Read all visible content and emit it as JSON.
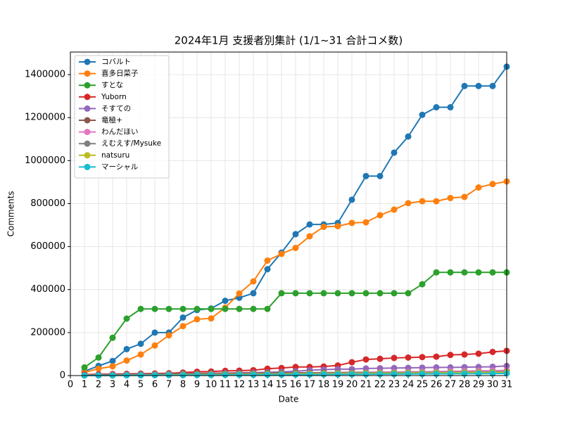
{
  "chart_data": {
    "type": "line",
    "title": "2024年1月 支援者別集計 (1/1~31 合計コメ数)",
    "x_label": "Date",
    "y_label": "Comments",
    "x": [
      1,
      2,
      3,
      4,
      5,
      6,
      7,
      8,
      9,
      10,
      11,
      12,
      13,
      14,
      15,
      16,
      17,
      18,
      19,
      20,
      21,
      22,
      23,
      24,
      25,
      26,
      27,
      28,
      29,
      30,
      31
    ],
    "xlim": [
      0,
      31
    ],
    "xticks": [
      0,
      1,
      2,
      3,
      4,
      5,
      6,
      7,
      8,
      9,
      10,
      11,
      12,
      13,
      14,
      15,
      16,
      17,
      18,
      19,
      20,
      21,
      22,
      23,
      24,
      25,
      26,
      27,
      28,
      29,
      30,
      31
    ],
    "ylim": [
      0,
      1505000
    ],
    "yticks": [
      0,
      200000,
      400000,
      600000,
      800000,
      1000000,
      1200000,
      1400000
    ],
    "grid": true,
    "legend": "upper left",
    "series": [
      {
        "name": "コバルト",
        "color": "#1f77b4",
        "values": [
          20000,
          45000,
          68000,
          123000,
          148000,
          200000,
          200000,
          270000,
          305000,
          312000,
          348000,
          362000,
          383000,
          495000,
          572000,
          658000,
          703000,
          703000,
          710000,
          818000,
          928000,
          928000,
          1037000,
          1112000,
          1213000,
          1248000,
          1248000,
          1347000,
          1347000,
          1347000,
          1437000
        ]
      },
      {
        "name": "喜多日菜子",
        "color": "#ff7f0e",
        "values": [
          15000,
          32000,
          43000,
          70000,
          98000,
          140000,
          187000,
          230000,
          262000,
          266000,
          316000,
          382000,
          438000,
          535000,
          566000,
          594000,
          648000,
          692000,
          695000,
          710000,
          713000,
          746000,
          772000,
          802000,
          811000,
          811000,
          826000,
          831000,
          875000,
          891000,
          903000
        ]
      },
      {
        "name": "すとな",
        "color": "#2ca02c",
        "values": [
          38000,
          84000,
          176000,
          265000,
          310000,
          310000,
          310000,
          310000,
          310000,
          310000,
          310000,
          310000,
          310000,
          310000,
          383000,
          383000,
          383000,
          383000,
          383000,
          383000,
          383000,
          383000,
          383000,
          383000,
          425000,
          480000,
          480000,
          480000,
          480000,
          480000,
          480000
        ]
      },
      {
        "name": "Yuborn",
        "color": "#d62728",
        "values": [
          5000,
          6000,
          7000,
          8000,
          9000,
          10000,
          11000,
          14000,
          18000,
          19000,
          22000,
          23000,
          25000,
          32000,
          35000,
          40000,
          40000,
          42000,
          47000,
          62000,
          75000,
          78000,
          82000,
          84000,
          86000,
          88000,
          96000,
          98000,
          102000,
          110000,
          115000
        ]
      },
      {
        "name": "そすての",
        "color": "#9467bd",
        "values": [
          2000,
          3000,
          4000,
          5000,
          6000,
          7000,
          8000,
          9000,
          10000,
          11000,
          12000,
          13000,
          14000,
          15000,
          17000,
          20000,
          25000,
          28000,
          30000,
          30000,
          33000,
          34000,
          35000,
          36000,
          37000,
          38000,
          38000,
          39000,
          40000,
          41000,
          45000
        ]
      },
      {
        "name": "竜極+",
        "color": "#8c564b",
        "values": [
          1000,
          2000,
          3000,
          4000,
          5000,
          6000,
          7000,
          8000,
          9000,
          10000,
          10000,
          11000,
          11000,
          12000,
          12000,
          13000,
          13000,
          14000,
          14000,
          15000,
          15000,
          16000,
          16000,
          17000,
          17000,
          18000,
          18000,
          19000,
          19000,
          20000,
          21000
        ]
      },
      {
        "name": "わんだほい",
        "color": "#e377c2",
        "values": [
          500,
          1000,
          1500,
          2000,
          2500,
          3000,
          3500,
          4000,
          4500,
          5000,
          5500,
          6000,
          6500,
          7000,
          8000,
          9000,
          10000,
          11000,
          12000,
          13000,
          14000,
          15000,
          16000,
          17000,
          18000,
          19000,
          20000,
          21000,
          22000,
          23000,
          24000
        ]
      },
      {
        "name": "えむえす/Mysuke",
        "color": "#7f7f7f",
        "values": [
          1000,
          1500,
          2000,
          3000,
          4000,
          5000,
          5500,
          6000,
          6500,
          7000,
          7500,
          8000,
          8500,
          9000,
          9500,
          10000,
          10500,
          11000,
          11500,
          12000,
          12500,
          13000,
          13500,
          14000,
          14500,
          15000,
          15500,
          16000,
          16500,
          17000,
          18000
        ]
      },
      {
        "name": "natsuru",
        "color": "#bcbd22",
        "values": [
          500,
          800,
          1000,
          1500,
          2000,
          2500,
          3000,
          3500,
          4000,
          4500,
          5000,
          5500,
          6000,
          6500,
          7000,
          7500,
          8000,
          8500,
          9000,
          9500,
          10000,
          10500,
          11000,
          11500,
          12000,
          12500,
          13000,
          13500,
          14000,
          14500,
          15000
        ]
      },
      {
        "name": "マーシャル",
        "color": "#17becf",
        "values": [
          300,
          500,
          700,
          1000,
          1200,
          1500,
          1800,
          2000,
          2300,
          2600,
          3000,
          3300,
          3600,
          4000,
          4300,
          4600,
          5000,
          5300,
          5600,
          6000,
          6300,
          6600,
          7000,
          7300,
          7600,
          8000,
          8300,
          8600,
          9000,
          9300,
          10000
        ]
      }
    ]
  }
}
